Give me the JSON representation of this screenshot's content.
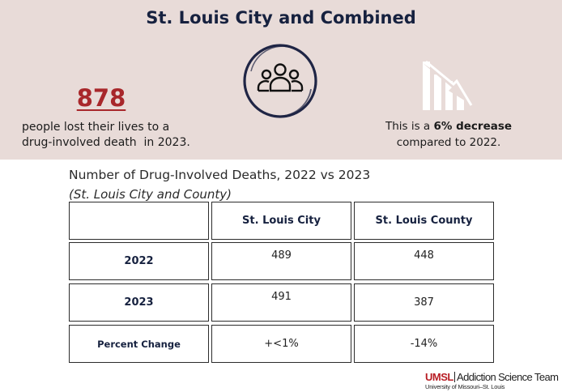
{
  "banner": {
    "title": "St. Louis City and Combined",
    "stat_number": "878",
    "stat_desc_line1": "people lost their lives to a",
    "stat_desc_line2": "drug-involved death  in 2023.",
    "change_prefix": "This is a ",
    "change_value": "6% decrease",
    "change_suffix": "compared to 2022.",
    "icons": [
      "people-group-icon",
      "declining-chart-icon"
    ],
    "colors": {
      "background": "#e8dbd8",
      "title": "#16213f",
      "stat_number": "#a8272b",
      "circle": "#1f2545"
    }
  },
  "table": {
    "title": "Number of Drug-Involved Deaths, 2022 vs 2023",
    "subtitle": "(St. Louis City and County)",
    "headers": [
      "",
      "St. Louis City",
      "St. Louis County"
    ],
    "rows": [
      {
        "label": "2022",
        "city": "489",
        "county": "448"
      },
      {
        "label": "2023",
        "city": "491",
        "county": "387"
      },
      {
        "label": "Percent Change",
        "city": "+<1%",
        "county": "-14%"
      }
    ]
  },
  "logo": {
    "brand": "UMSL",
    "team": "Addiction Science Team",
    "sub": "University of Missouri–St. Louis"
  }
}
